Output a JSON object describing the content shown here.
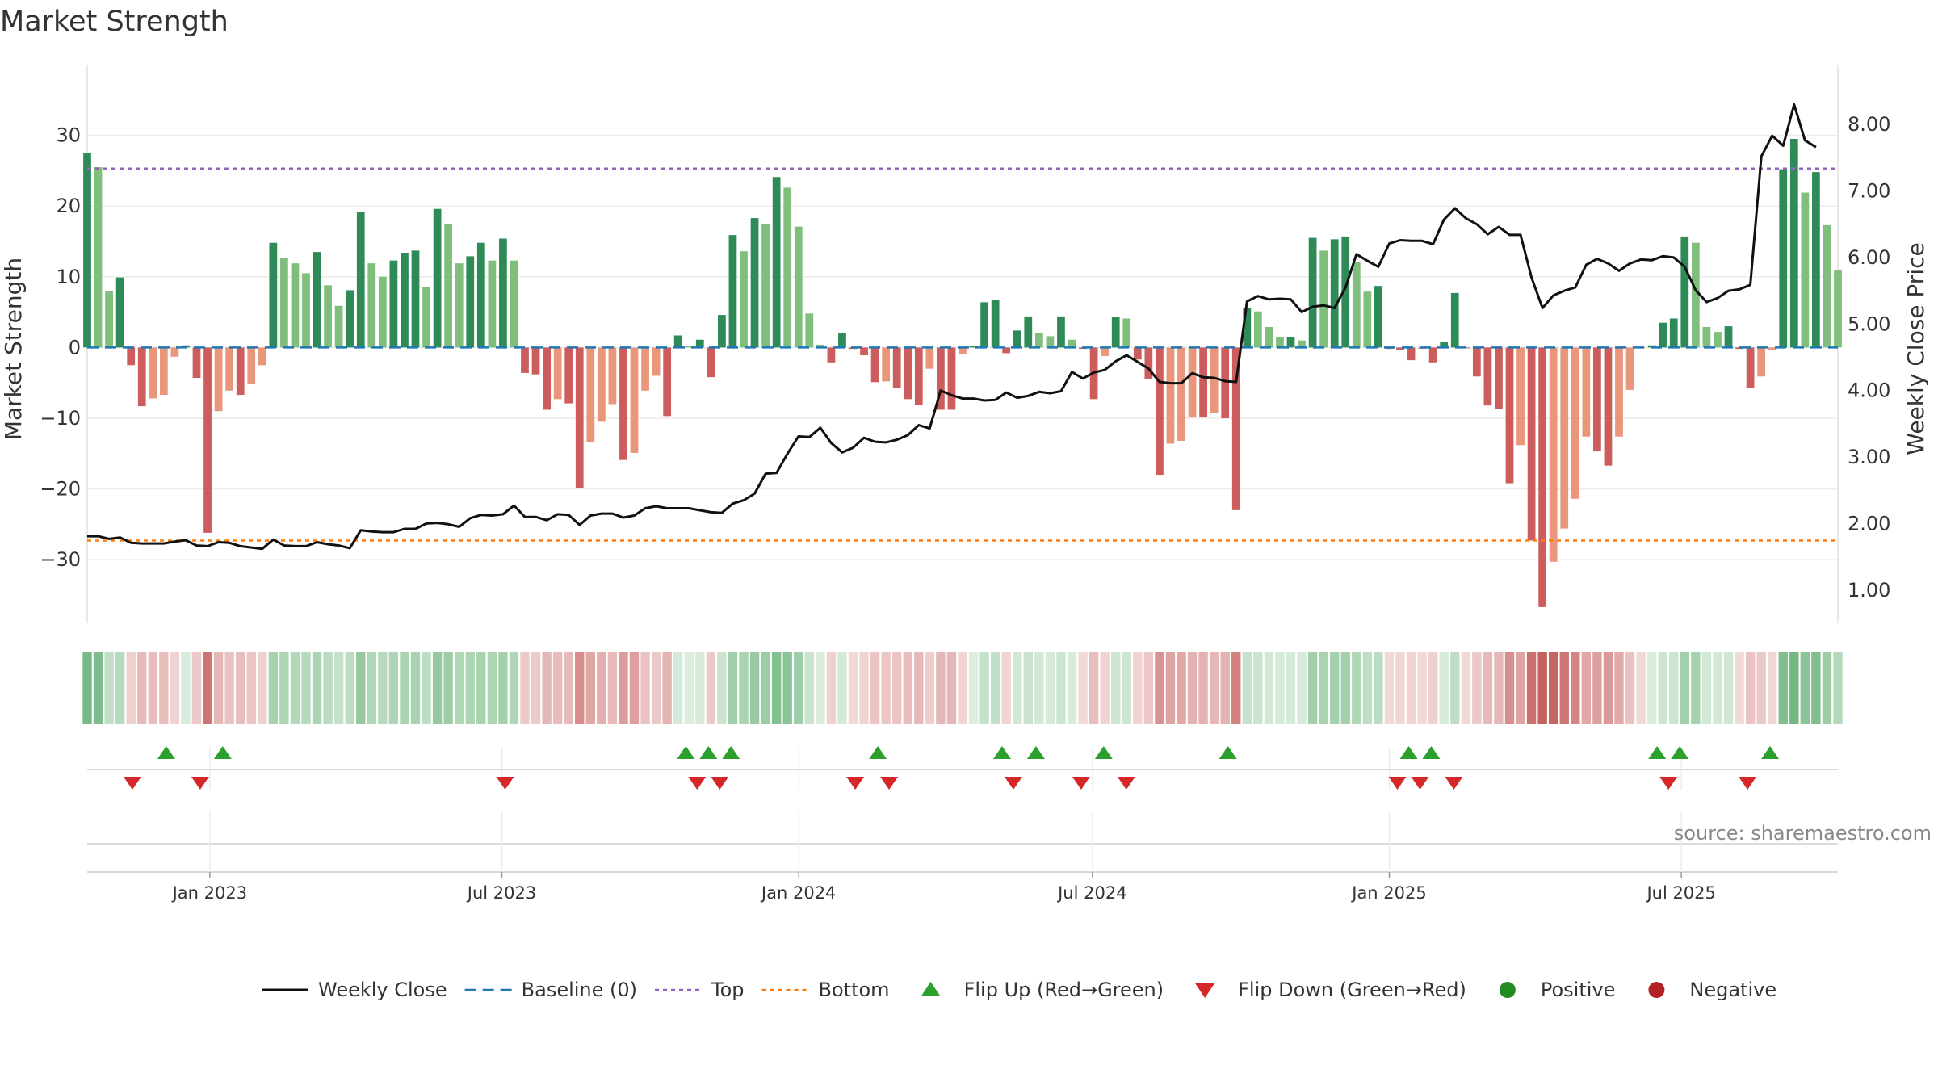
{
  "chart_data": {
    "type": "bar",
    "title": "Market Strength",
    "ylabel": "Market Strength",
    "ylabel_right": "Weekly Close Price",
    "ylim": [
      -39,
      40
    ],
    "ylim_right": [
      0.5,
      8.9
    ],
    "yticks": [
      30,
      20,
      10,
      0,
      -10,
      -20,
      -30
    ],
    "yticks_right": [
      8.0,
      7.0,
      6.0,
      5.0,
      4.0,
      3.0,
      2.0,
      1.0
    ],
    "yticks_labels": [
      "30",
      "20",
      "10",
      "0",
      "−10",
      "−20",
      "−30"
    ],
    "yticks_right_labels": [
      "8.00",
      "7.00",
      "6.00",
      "5.00",
      "4.00",
      "3.00",
      "2.00",
      "1.00"
    ],
    "top_level": 25.3,
    "bottom_level": -27.3,
    "baseline": 0,
    "x_start": "2022-10-17",
    "x_end": "2025-10-06",
    "xticks": [
      {
        "date": "2023-01-01",
        "label": "Jan 2023"
      },
      {
        "date": "2023-07-01",
        "label": "Jul 2023"
      },
      {
        "date": "2024-01-01",
        "label": "Jan 2024"
      },
      {
        "date": "2024-07-01",
        "label": "Jul 2024"
      },
      {
        "date": "2025-01-01",
        "label": "Jan 2025"
      },
      {
        "date": "2025-07-01",
        "label": "Jul 2025"
      }
    ],
    "strength": [
      27.5,
      25.5,
      8,
      9.9,
      -2.5,
      -8.3,
      -7.2,
      -6.7,
      -1.3,
      0.3,
      -4.3,
      -26.2,
      -9,
      -6.1,
      -6.7,
      -5.2,
      -2.5,
      14.8,
      12.7,
      11.9,
      10.5,
      13.5,
      8.8,
      5.9,
      8.1,
      19.2,
      11.9,
      10,
      12.3,
      13.4,
      13.7,
      8.5,
      19.6,
      17.5,
      11.9,
      12.9,
      14.8,
      12.3,
      15.4,
      12.3,
      -3.6,
      -3.8,
      -8.8,
      -7.3,
      -7.9,
      -19.9,
      -13.4,
      -10.5,
      -8,
      -15.9,
      -14.9,
      -6.1,
      -4,
      -9.7,
      1.7,
      0.2,
      1.1,
      -4.2,
      4.6,
      15.9,
      13.6,
      18.3,
      17.4,
      24.1,
      22.6,
      17.1,
      4.8,
      0.4,
      -2.1,
      2,
      -0.2,
      -1.1,
      -4.9,
      -4.8,
      -5.7,
      -7.3,
      -8.1,
      -3,
      -8.8,
      -8.8,
      -0.9,
      0.2,
      6.4,
      6.7,
      -0.8,
      2.4,
      4.4,
      2.1,
      1.6,
      4.4,
      1.1,
      -0.2,
      -7.3,
      -1.2,
      4.3,
      4.1,
      -1.7,
      -4.4,
      -18,
      -13.6,
      -13.2,
      -9.9,
      -9.9,
      -9.3,
      -10,
      -23,
      5.6,
      5.1,
      2.9,
      1.5,
      1.5,
      1,
      15.5,
      13.7,
      15.3,
      15.7,
      12.1,
      7.9,
      8.7,
      -0.2,
      -0.4,
      -1.8,
      -0.2,
      -2.1,
      0.8,
      7.7,
      -0.1,
      -4.1,
      -8.2,
      -8.7,
      -19.2,
      -13.8,
      -27.3,
      -36.7,
      -30.3,
      -25.6,
      -21.4,
      -12.6,
      -14.7,
      -16.7,
      -12.6,
      -6,
      -0.1,
      0.3,
      3.5,
      4.1,
      15.7,
      14.8,
      2.9,
      2.2,
      3,
      -0.2,
      -5.7,
      -4.1,
      -0.3,
      25.2,
      29.5,
      21.9,
      24.8,
      17.3,
      10.9
    ],
    "close": [
      1.81,
      1.81,
      1.77,
      1.79,
      1.71,
      1.7,
      1.7,
      1.7,
      1.73,
      1.75,
      1.67,
      1.66,
      1.72,
      1.71,
      1.66,
      1.64,
      1.62,
      1.76,
      1.67,
      1.66,
      1.66,
      1.72,
      1.69,
      1.67,
      1.63,
      1.9,
      1.88,
      1.87,
      1.87,
      1.92,
      1.92,
      2.0,
      2.01,
      1.99,
      1.95,
      2.08,
      2.13,
      2.12,
      2.14,
      2.27,
      2.1,
      2.1,
      2.05,
      2.14,
      2.13,
      1.98,
      2.12,
      2.15,
      2.15,
      2.09,
      2.12,
      2.23,
      2.26,
      2.23,
      2.23,
      2.23,
      2.2,
      2.17,
      2.16,
      2.3,
      2.35,
      2.45,
      2.75,
      2.76,
      3.05,
      3.31,
      3.3,
      3.44,
      3.21,
      3.07,
      3.14,
      3.29,
      3.23,
      3.22,
      3.26,
      3.33,
      3.48,
      3.43,
      4.0,
      3.93,
      3.88,
      3.88,
      3.85,
      3.86,
      3.97,
      3.89,
      3.92,
      3.98,
      3.96,
      3.99,
      4.28,
      4.18,
      4.27,
      4.31,
      4.44,
      4.53,
      4.43,
      4.33,
      4.13,
      4.11,
      4.11,
      4.26,
      4.2,
      4.19,
      4.14,
      4.13,
      5.34,
      5.42,
      5.37,
      5.38,
      5.37,
      5.18,
      5.26,
      5.28,
      5.24,
      5.55,
      6.05,
      5.95,
      5.86,
      6.21,
      6.26,
      6.25,
      6.25,
      6.2,
      6.57,
      6.74,
      6.59,
      6.5,
      6.35,
      6.46,
      6.34,
      6.34,
      5.7,
      5.24,
      5.43,
      5.5,
      5.55,
      5.89,
      5.98,
      5.91,
      5.8,
      5.91,
      5.97,
      5.96,
      6.02,
      6.0,
      5.86,
      5.51,
      5.33,
      5.39,
      5.5,
      5.52,
      5.59,
      7.52,
      7.83,
      7.68,
      8.3,
      7.76,
      7.66
    ],
    "flips_up": [
      "2022-12-05",
      "2023-01-09",
      "2023-10-23",
      "2023-11-06",
      "2023-11-20",
      "2024-02-19",
      "2024-05-06",
      "2024-05-27",
      "2024-07-08",
      "2024-09-23",
      "2025-01-13",
      "2025-01-27",
      "2025-06-16",
      "2025-06-30",
      "2025-08-25"
    ],
    "flips_down": [
      "2022-11-14",
      "2022-12-26",
      "2023-07-03",
      "2023-10-30",
      "2023-11-13",
      "2024-02-05",
      "2024-02-26",
      "2024-05-13",
      "2024-06-24",
      "2024-07-22",
      "2025-01-06",
      "2025-01-20",
      "2025-02-10",
      "2025-06-23",
      "2025-08-11"
    ],
    "legend": [
      {
        "label": "Weekly Close",
        "kind": "line",
        "color": "#111111"
      },
      {
        "label": "Baseline (0)",
        "kind": "dash",
        "color": "#1f77b4"
      },
      {
        "label": "Top",
        "kind": "dot",
        "color": "#9467bd"
      },
      {
        "label": "Bottom",
        "kind": "dot",
        "color": "#ff7f0e"
      },
      {
        "label": "Flip Up (Red→Green)",
        "kind": "up",
        "color": "#2ca02c"
      },
      {
        "label": "Flip Down (Green→Red)",
        "kind": "down",
        "color": "#d62728"
      },
      {
        "label": "Positive",
        "kind": "circle",
        "color": "#228b22"
      },
      {
        "label": "Negative",
        "kind": "circle",
        "color": "#b22222"
      }
    ],
    "legend_position": "bottom",
    "grid": true,
    "source": "source: sharemaestro.com",
    "colors": {
      "positive_strong": "#2e8b57",
      "positive_light": "#7fbf7b",
      "negative_strong": "#cd5c5c",
      "negative_light": "#e9967a",
      "heat_pos": "#5aab6a",
      "heat_neg": "#c0504d",
      "line": "#111111"
    }
  }
}
